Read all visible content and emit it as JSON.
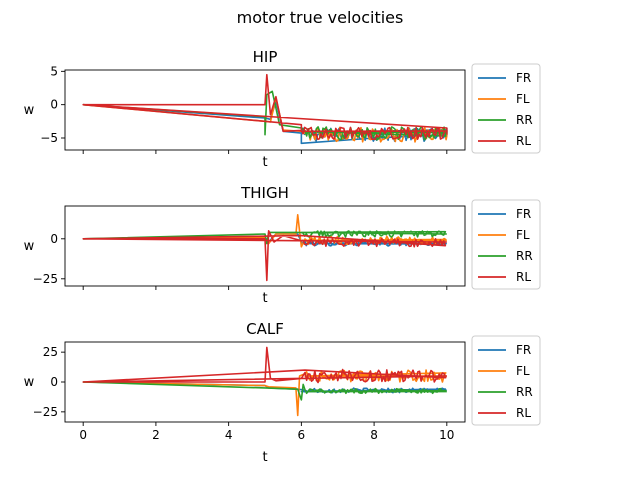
{
  "figure": {
    "suptitle": "motor true velocities"
  },
  "colors": {
    "FR": "#1f77b4",
    "FL": "#ff7f0e",
    "RR": "#2ca02c",
    "RL": "#d62728"
  },
  "chart_data": [
    {
      "type": "line",
      "title": "HIP",
      "xlabel": "t",
      "ylabel": "w",
      "xlim": [
        -0.5,
        10.5
      ],
      "ylim": [
        -6.8,
        5.2
      ],
      "yticks": [
        -5,
        0,
        5
      ],
      "xticks": [
        0,
        2,
        4,
        6,
        8,
        10
      ],
      "show_xticklabels": false,
      "legend": {
        "placement": "outside-right",
        "entries": [
          "FR",
          "FL",
          "RR",
          "RL"
        ]
      },
      "series": [
        {
          "name": "FR",
          "values": [
            [
              0,
              0
            ],
            [
              5.0,
              -2.0
            ],
            [
              5.15,
              -2.2
            ],
            [
              5.3,
              0.5
            ],
            [
              5.5,
              -4.0
            ],
            [
              6.0,
              -4.2
            ],
            [
              6.0,
              -5.8
            ],
            [
              8.0,
              -5.0
            ],
            [
              10.0,
              -4.5
            ],
            [
              10.0,
              -3.5
            ]
          ],
          "noise": {
            "from": 6.0,
            "to": 10.0,
            "center": -4.5,
            "amp": 1.0
          }
        },
        {
          "name": "FL",
          "values": [
            [
              0,
              0
            ],
            [
              5.0,
              -2.5
            ],
            [
              5.15,
              -2.6
            ],
            [
              5.3,
              1.0
            ],
            [
              5.5,
              -3.8
            ],
            [
              6.0,
              -4.0
            ],
            [
              6.1,
              -4.3
            ],
            [
              10.0,
              -4.7
            ],
            [
              10.0,
              -3.8
            ]
          ],
          "noise": {
            "from": 6.2,
            "to": 10.0,
            "center": -4.5,
            "amp": 1.1
          }
        },
        {
          "name": "RR",
          "values": [
            [
              0,
              0
            ],
            [
              5.0,
              -1.8
            ],
            [
              5.0,
              -4.5
            ],
            [
              5.05,
              1.5
            ],
            [
              5.2,
              2.0
            ],
            [
              5.4,
              -3.0
            ],
            [
              6.0,
              -3.5
            ],
            [
              6.1,
              -4.0
            ],
            [
              10.0,
              -4.2
            ],
            [
              10.0,
              -3.8
            ]
          ],
          "noise": {
            "from": 6.1,
            "to": 10.0,
            "center": -4.3,
            "amp": 1.0
          }
        },
        {
          "name": "RL",
          "values": [
            [
              0,
              0
            ],
            [
              5.0,
              0
            ],
            [
              5.05,
              4.5
            ],
            [
              5.15,
              -1.5
            ],
            [
              5.3,
              1.2
            ],
            [
              5.5,
              -4.0
            ],
            [
              6.0,
              -4.0
            ],
            [
              6.0,
              -3.0
            ],
            [
              0,
              0
            ],
            [
              10.0,
              -3.5
            ],
            [
              10.0,
              -4.5
            ]
          ],
          "noise": {
            "from": 6.0,
            "to": 10.0,
            "center": -4.3,
            "amp": 0.9
          }
        }
      ]
    },
    {
      "type": "line",
      "title": "THIGH",
      "xlabel": "t",
      "ylabel": "w",
      "xlim": [
        -0.5,
        10.5
      ],
      "ylim": [
        -29.5,
        20.5
      ],
      "yticks": [
        -25,
        0
      ],
      "xticks": [
        0,
        2,
        4,
        6,
        8,
        10
      ],
      "show_xticklabels": false,
      "legend": {
        "placement": "outside-right",
        "entries": [
          "FR",
          "FL",
          "RR",
          "RL"
        ]
      },
      "series": [
        {
          "name": "FR",
          "values": [
            [
              0,
              0
            ],
            [
              5.0,
              1.0
            ],
            [
              5.1,
              -2.0
            ],
            [
              5.3,
              3.0
            ],
            [
              5.9,
              3.0
            ],
            [
              6.0,
              -3.0
            ],
            [
              10.0,
              -3.0
            ]
          ],
          "noise": {
            "from": 6.0,
            "to": 10.0,
            "center": -2.5,
            "amp": 2.0
          }
        },
        {
          "name": "FL",
          "values": [
            [
              0,
              0
            ],
            [
              5.0,
              1.0
            ],
            [
              5.1,
              -3.0
            ],
            [
              5.3,
              3.0
            ],
            [
              5.85,
              3.0
            ],
            [
              5.9,
              15.0
            ],
            [
              6.0,
              -5.0
            ],
            [
              6.1,
              -1.0
            ],
            [
              10.0,
              -1.0
            ]
          ],
          "noise": {
            "from": 6.1,
            "to": 10.0,
            "center": -1.0,
            "amp": 2.5
          }
        },
        {
          "name": "RR",
          "values": [
            [
              0,
              0
            ],
            [
              5.0,
              3.0
            ],
            [
              5.05,
              -3.0
            ],
            [
              5.1,
              4.0
            ],
            [
              5.9,
              4.0
            ],
            [
              6.0,
              4.0
            ],
            [
              10.0,
              3.0
            ]
          ],
          "noise": {
            "from": 6.0,
            "to": 10.0,
            "center": 3.0,
            "amp": 2.0
          }
        },
        {
          "name": "RL",
          "values": [
            [
              0,
              0
            ],
            [
              5.0,
              0
            ],
            [
              5.05,
              -26.0
            ],
            [
              5.1,
              5.0
            ],
            [
              5.25,
              -2.0
            ],
            [
              5.5,
              2.0
            ],
            [
              6.0,
              2.0
            ],
            [
              0,
              0
            ],
            [
              10.0,
              -2.0
            ]
          ],
          "noise": {
            "from": 6.0,
            "to": 10.0,
            "center": -2.5,
            "amp": 2.5
          }
        }
      ]
    },
    {
      "type": "line",
      "title": "CALF",
      "xlabel": "t",
      "ylabel": "w",
      "xlim": [
        -0.5,
        10.5
      ],
      "ylim": [
        -33.5,
        33.5
      ],
      "yticks": [
        -25,
        0,
        25
      ],
      "xticks": [
        0,
        2,
        4,
        6,
        8,
        10
      ],
      "show_xticklabels": true,
      "legend": {
        "placement": "outside-right",
        "entries": [
          "FR",
          "FL",
          "RR",
          "RL"
        ]
      },
      "series": [
        {
          "name": "FR",
          "values": [
            [
              0,
              0
            ],
            [
              5.0,
              -3.0
            ],
            [
              5.1,
              -5.0
            ],
            [
              5.9,
              -6.0
            ],
            [
              6.0,
              -8.0
            ],
            [
              10.0,
              -7.0
            ]
          ],
          "noise": {
            "from": 6.0,
            "to": 10.0,
            "center": -7.0,
            "amp": 2.0
          }
        },
        {
          "name": "FL",
          "values": [
            [
              0,
              0
            ],
            [
              5.0,
              -3.0
            ],
            [
              5.1,
              -4.0
            ],
            [
              5.85,
              -5.0
            ],
            [
              5.9,
              -28.0
            ],
            [
              5.95,
              5.0
            ],
            [
              6.1,
              5.0
            ],
            [
              10.0,
              5.0
            ]
          ],
          "noise": {
            "from": 6.1,
            "to": 10.0,
            "center": 5.0,
            "amp": 5.0
          }
        },
        {
          "name": "RR",
          "values": [
            [
              0,
              0
            ],
            [
              5.0,
              -5.0
            ],
            [
              5.9,
              -6.0
            ],
            [
              6.0,
              -15.0
            ],
            [
              6.05,
              -2.0
            ],
            [
              6.2,
              -8.0
            ],
            [
              10.0,
              -8.0
            ]
          ],
          "noise": {
            "from": 6.1,
            "to": 10.0,
            "center": -7.5,
            "amp": 2.0
          }
        },
        {
          "name": "RL",
          "values": [
            [
              0,
              0
            ],
            [
              5.0,
              0
            ],
            [
              5.05,
              29.0
            ],
            [
              5.15,
              3.0
            ],
            [
              5.3,
              1.0
            ],
            [
              6.0,
              3.0
            ],
            [
              6.1,
              10.0
            ],
            [
              0,
              0
            ],
            [
              10.0,
              5.0
            ]
          ],
          "noise": {
            "from": 6.1,
            "to": 10.0,
            "center": 5.0,
            "amp": 5.5
          }
        }
      ]
    }
  ]
}
